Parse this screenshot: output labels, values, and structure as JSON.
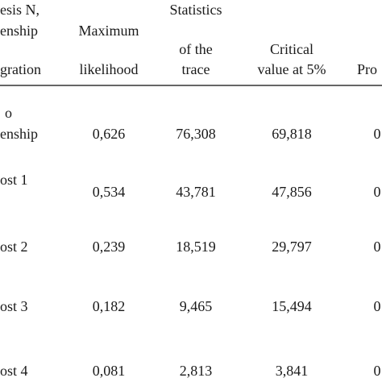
{
  "table": {
    "header": [
      [
        "esis N,",
        "enship",
        "gration"
      ],
      [
        "Maximum",
        "likelihood"
      ],
      [
        "Statistics",
        "of the",
        "trace"
      ],
      [
        "Critical",
        "value at 5%"
      ],
      [
        "Pro"
      ]
    ],
    "rows": [
      {
        "label": [
          "o",
          "enship"
        ],
        "cells": [
          "0,626",
          "76,308",
          "69,818",
          "0"
        ]
      },
      {
        "label": [
          "ost 1"
        ],
        "cells": [
          "0,534",
          "43,781",
          "47,856",
          "0"
        ]
      },
      {
        "label": [
          "ost 2"
        ],
        "cells": [
          "0,239",
          "18,519",
          "29,797",
          "0"
        ]
      },
      {
        "label": [
          "ost 3"
        ],
        "cells": [
          "0,182",
          "9,465",
          "15,494",
          "0"
        ]
      },
      {
        "label": [
          "ost 4"
        ],
        "cells": [
          "0,081",
          "2,813",
          "3,841",
          "0"
        ]
      }
    ]
  }
}
